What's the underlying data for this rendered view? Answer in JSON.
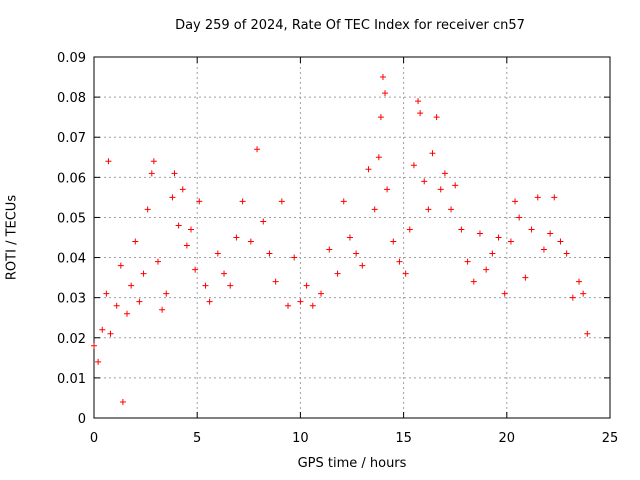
{
  "chart_data": {
    "type": "scatter",
    "title": "Day 259 of 2024, Rate Of TEC Index for receiver cn57",
    "xlabel": "GPS time / hours",
    "ylabel": "ROTI / TECUs",
    "xlim": [
      0,
      25
    ],
    "ylim": [
      0,
      0.09
    ],
    "x_ticks": [
      0,
      5,
      10,
      15,
      20,
      25
    ],
    "x_tick_labels": [
      "0",
      "5",
      "10",
      "15",
      "20",
      "25"
    ],
    "y_ticks": [
      0,
      0.01,
      0.02,
      0.03,
      0.04,
      0.05,
      0.06,
      0.07,
      0.08,
      0.09
    ],
    "y_tick_labels": [
      "0",
      "0.01",
      "0.02",
      "0.03",
      "0.04",
      "0.05",
      "0.06",
      "0.07",
      "0.08",
      "0.09"
    ],
    "grid": true,
    "marker": "+",
    "color": "#ff0000",
    "series": [
      {
        "name": "ROTI",
        "points": [
          [
            0.0,
            0.018
          ],
          [
            0.2,
            0.014
          ],
          [
            0.4,
            0.022
          ],
          [
            0.6,
            0.031
          ],
          [
            0.7,
            0.064
          ],
          [
            0.8,
            0.021
          ],
          [
            1.1,
            0.028
          ],
          [
            1.3,
            0.038
          ],
          [
            1.4,
            0.004
          ],
          [
            1.6,
            0.026
          ],
          [
            1.8,
            0.033
          ],
          [
            2.0,
            0.044
          ],
          [
            2.2,
            0.029
          ],
          [
            2.4,
            0.036
          ],
          [
            2.6,
            0.052
          ],
          [
            2.8,
            0.061
          ],
          [
            2.9,
            0.064
          ],
          [
            3.1,
            0.039
          ],
          [
            3.3,
            0.027
          ],
          [
            3.5,
            0.031
          ],
          [
            3.8,
            0.055
          ],
          [
            3.9,
            0.061
          ],
          [
            4.1,
            0.048
          ],
          [
            4.3,
            0.057
          ],
          [
            4.5,
            0.043
          ],
          [
            4.7,
            0.047
          ],
          [
            4.9,
            0.037
          ],
          [
            5.1,
            0.054
          ],
          [
            5.4,
            0.033
          ],
          [
            5.6,
            0.029
          ],
          [
            6.0,
            0.041
          ],
          [
            6.3,
            0.036
          ],
          [
            6.6,
            0.033
          ],
          [
            6.9,
            0.045
          ],
          [
            7.2,
            0.054
          ],
          [
            7.6,
            0.044
          ],
          [
            7.9,
            0.067
          ],
          [
            8.2,
            0.049
          ],
          [
            8.5,
            0.041
          ],
          [
            8.8,
            0.034
          ],
          [
            9.1,
            0.054
          ],
          [
            9.4,
            0.028
          ],
          [
            9.7,
            0.04
          ],
          [
            10.0,
            0.029
          ],
          [
            10.3,
            0.033
          ],
          [
            10.6,
            0.028
          ],
          [
            11.0,
            0.031
          ],
          [
            11.4,
            0.042
          ],
          [
            11.8,
            0.036
          ],
          [
            12.1,
            0.054
          ],
          [
            12.4,
            0.045
          ],
          [
            12.7,
            0.041
          ],
          [
            13.0,
            0.038
          ],
          [
            13.3,
            0.062
          ],
          [
            13.6,
            0.052
          ],
          [
            13.8,
            0.065
          ],
          [
            13.9,
            0.075
          ],
          [
            14.0,
            0.085
          ],
          [
            14.1,
            0.081
          ],
          [
            14.2,
            0.057
          ],
          [
            14.5,
            0.044
          ],
          [
            14.8,
            0.039
          ],
          [
            15.1,
            0.036
          ],
          [
            15.3,
            0.047
          ],
          [
            15.5,
            0.063
          ],
          [
            15.7,
            0.079
          ],
          [
            15.8,
            0.076
          ],
          [
            16.0,
            0.059
          ],
          [
            16.2,
            0.052
          ],
          [
            16.4,
            0.066
          ],
          [
            16.6,
            0.075
          ],
          [
            16.8,
            0.057
          ],
          [
            17.0,
            0.061
          ],
          [
            17.3,
            0.052
          ],
          [
            17.5,
            0.058
          ],
          [
            17.8,
            0.047
          ],
          [
            18.1,
            0.039
          ],
          [
            18.4,
            0.034
          ],
          [
            18.7,
            0.046
          ],
          [
            19.0,
            0.037
          ],
          [
            19.3,
            0.041
          ],
          [
            19.6,
            0.045
          ],
          [
            19.9,
            0.031
          ],
          [
            20.2,
            0.044
          ],
          [
            20.4,
            0.054
          ],
          [
            20.6,
            0.05
          ],
          [
            20.9,
            0.035
          ],
          [
            21.2,
            0.047
          ],
          [
            21.5,
            0.055
          ],
          [
            21.8,
            0.042
          ],
          [
            22.1,
            0.046
          ],
          [
            22.3,
            0.055
          ],
          [
            22.6,
            0.044
          ],
          [
            22.9,
            0.041
          ],
          [
            23.2,
            0.03
          ],
          [
            23.5,
            0.034
          ],
          [
            23.7,
            0.031
          ],
          [
            23.9,
            0.021
          ]
        ]
      }
    ]
  }
}
